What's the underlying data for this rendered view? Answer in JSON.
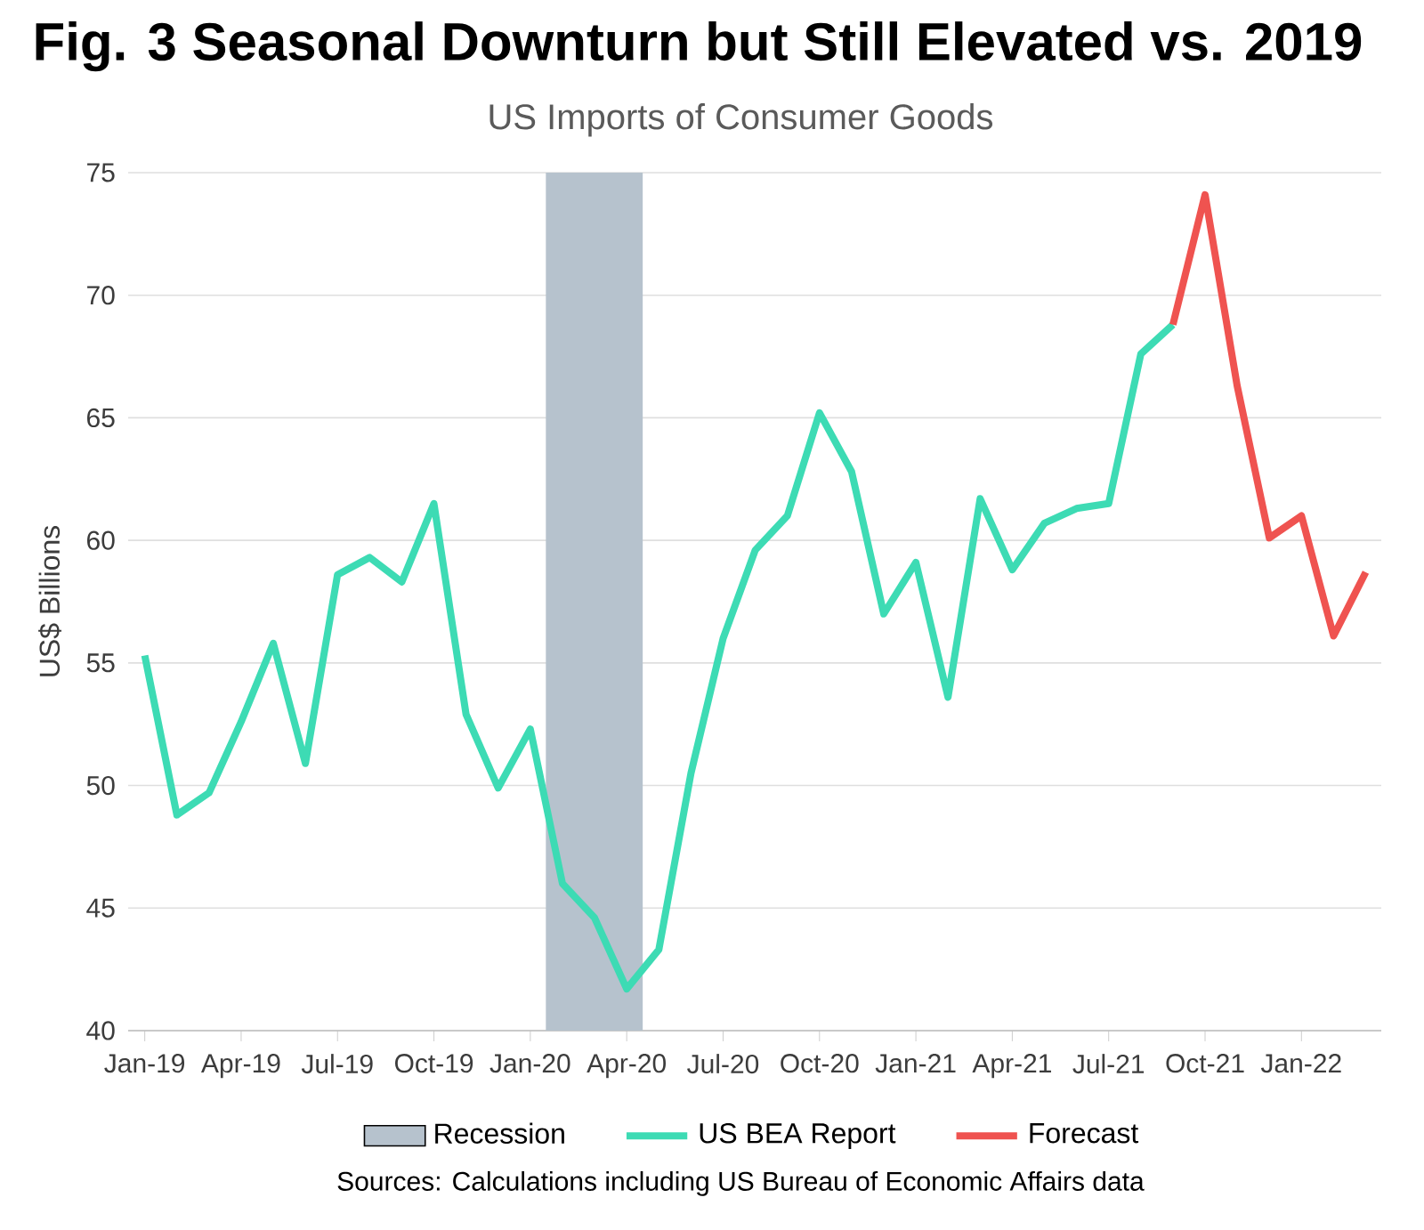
{
  "chart_data": {
    "type": "line",
    "title": "Fig. 3 Seasonal Downturn but Still Elevated vs. 2019",
    "subtitle": "US Imports of Consumer Goods",
    "ylabel": "US$ Billions",
    "x": [
      "2019-01",
      "2019-02",
      "2019-03",
      "2019-04",
      "2019-05",
      "2019-06",
      "2019-07",
      "2019-08",
      "2019-09",
      "2019-10",
      "2019-11",
      "2019-12",
      "2020-01",
      "2020-02",
      "2020-03",
      "2020-04",
      "2020-05",
      "2020-06",
      "2020-07",
      "2020-08",
      "2020-09",
      "2020-10",
      "2020-11",
      "2020-12",
      "2021-01",
      "2021-02",
      "2021-03",
      "2021-04",
      "2021-05",
      "2021-06",
      "2021-07",
      "2021-08",
      "2021-09",
      "2021-10",
      "2021-11",
      "2021-12",
      "2022-01",
      "2022-02",
      "2022-03"
    ],
    "series": [
      {
        "name": "US BEA Report",
        "color": "#3ddbb4",
        "values": [
          55.3,
          48.8,
          49.7,
          52.6,
          55.8,
          50.9,
          58.6,
          59.3,
          58.3,
          61.5,
          52.9,
          49.9,
          52.3,
          46.0,
          44.6,
          41.7,
          43.3,
          50.5,
          56.0,
          59.6,
          61.0,
          65.2,
          62.8,
          57.0,
          59.1,
          53.6,
          61.7,
          58.8,
          60.7,
          61.3,
          61.5,
          67.6,
          68.8,
          null,
          null,
          null,
          null,
          null,
          null
        ]
      },
      {
        "name": "Forecast",
        "color": "#ef5350",
        "values": [
          null,
          null,
          null,
          null,
          null,
          null,
          null,
          null,
          null,
          null,
          null,
          null,
          null,
          null,
          null,
          null,
          null,
          null,
          null,
          null,
          null,
          null,
          null,
          null,
          null,
          null,
          null,
          null,
          null,
          null,
          null,
          null,
          68.8,
          74.1,
          66.3,
          60.1,
          61.0,
          56.1,
          58.7
        ]
      }
    ],
    "xlim": [
      "2018-12-16",
      "2022-03-16"
    ],
    "xticks": [
      {
        "value": "2019-01",
        "label": "Jan-19"
      },
      {
        "value": "2019-04",
        "label": "Apr-19"
      },
      {
        "value": "2019-07",
        "label": "Jul-19"
      },
      {
        "value": "2019-10",
        "label": "Oct-19"
      },
      {
        "value": "2020-01",
        "label": "Jan-20"
      },
      {
        "value": "2020-04",
        "label": "Apr-20"
      },
      {
        "value": "2020-07",
        "label": "Jul-20"
      },
      {
        "value": "2020-10",
        "label": "Oct-20"
      },
      {
        "value": "2021-01",
        "label": "Jan-21"
      },
      {
        "value": "2021-04",
        "label": "Apr-21"
      },
      {
        "value": "2021-07",
        "label": "Jul-21"
      },
      {
        "value": "2021-10",
        "label": "Oct-21"
      },
      {
        "value": "2022-01",
        "label": "Jan-22"
      }
    ],
    "ylim": [
      40,
      75
    ],
    "yticks": [
      40,
      45,
      50,
      55,
      60,
      65,
      70,
      75
    ],
    "bands": [
      {
        "axis": "x",
        "from": "2020-01-16",
        "to": "2020-04-16",
        "label": "Recession",
        "color": "#b6c2cd"
      }
    ],
    "grid": "y",
    "legend": "bottom",
    "marker": "none",
    "line_style": "solid",
    "annotations": [
      "Sources: Calculations including US Bureau of Economic Affairs data"
    ]
  }
}
